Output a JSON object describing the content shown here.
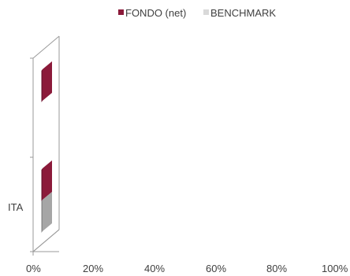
{
  "chart_data": {
    "type": "bar",
    "orientation": "horizontal",
    "three_d": true,
    "categories": [
      "",
      "ITA"
    ],
    "series": [
      {
        "name": "FONDO (net)",
        "color": "#8B1A3A",
        "values": [
          4,
          4
        ]
      },
      {
        "name": "BENCHMARK",
        "color": "#A6A6A6",
        "values": [
          null,
          4
        ]
      }
    ],
    "x_ticks": [
      "0%",
      "20%",
      "40%",
      "60%",
      "80%",
      "100%"
    ],
    "xlim": [
      0,
      100
    ],
    "legend_position": "top",
    "grid": false
  }
}
